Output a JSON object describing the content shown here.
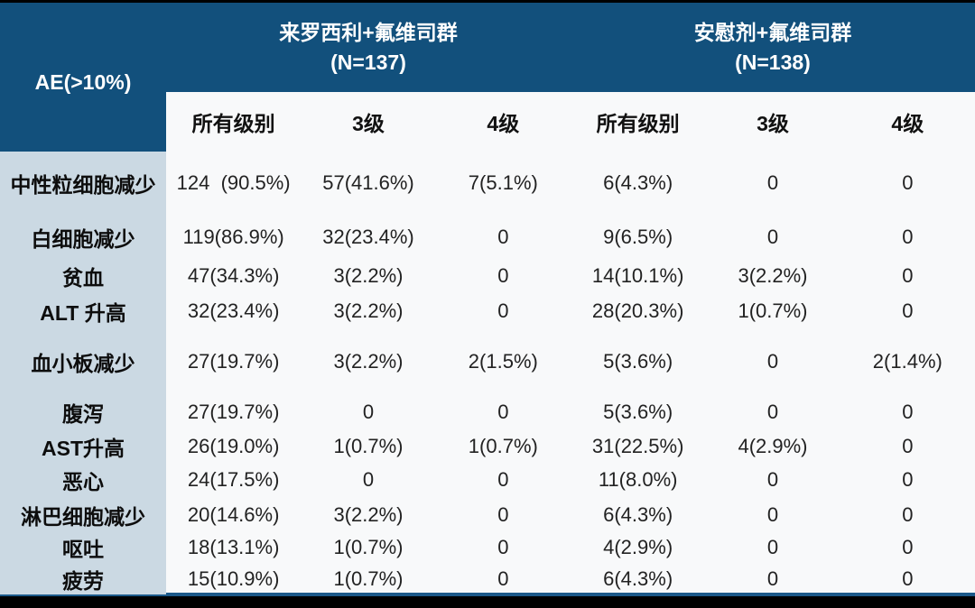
{
  "colors": {
    "header_navy": "#12507C",
    "label_column_bg": "#CBD9E3",
    "table_bg": "#F8F9FA",
    "frame_black": "#000000",
    "bottom_rule_navy": "#1B5989",
    "header_text": "#FFFFFF",
    "body_text": "#1C1C1C"
  },
  "chart_data": {
    "type": "table",
    "corner_header": "AE(>10%)",
    "column_groups": [
      {
        "label": "来罗西利+氟维司群",
        "n": "(N=137)",
        "columns": [
          "所有级别",
          "3级",
          "4级"
        ]
      },
      {
        "label": "安慰剂+氟维司群",
        "n": "(N=138)",
        "columns": [
          "所有级别",
          "3级",
          "4级"
        ]
      }
    ],
    "rows": [
      {
        "label": "中性粒细胞减少",
        "values": [
          "124  (90.5%)",
          "57(41.6%)",
          "7(5.1%)",
          "6(4.3%)",
          "0",
          "0"
        ]
      },
      {
        "label": "白细胞减少",
        "values": [
          "119(86.9%)",
          "32(23.4%)",
          "0",
          "9(6.5%)",
          "0",
          "0"
        ]
      },
      {
        "label": "贫血",
        "values": [
          "47(34.3%)",
          "3(2.2%)",
          "0",
          "14(10.1%)",
          "3(2.2%)",
          "0"
        ]
      },
      {
        "label": "ALT 升高",
        "values": [
          "32(23.4%)",
          "3(2.2%)",
          "0",
          "28(20.3%)",
          "1(0.7%)",
          "0"
        ]
      },
      {
        "label": "血小板减少",
        "values": [
          "27(19.7%)",
          "3(2.2%)",
          "2(1.5%)",
          "5(3.6%)",
          "0",
          "2(1.4%)"
        ]
      },
      {
        "label": "腹泻",
        "values": [
          "27(19.7%)",
          "0",
          "0",
          "5(3.6%)",
          "0",
          "0"
        ]
      },
      {
        "label": "AST升高",
        "values": [
          "26(19.0%)",
          "1(0.7%)",
          "1(0.7%)",
          "31(22.5%)",
          "4(2.9%)",
          "0"
        ]
      },
      {
        "label": "恶心",
        "values": [
          "24(17.5%)",
          "0",
          "0",
          "11(8.0%)",
          "0",
          "0"
        ]
      },
      {
        "label": "淋巴细胞减少",
        "values": [
          "20(14.6%)",
          "3(2.2%)",
          "0",
          "6(4.3%)",
          "0",
          "0"
        ]
      },
      {
        "label": "呕吐",
        "values": [
          "18(13.1%)",
          "1(0.7%)",
          "0",
          "4(2.9%)",
          "0",
          "0"
        ]
      },
      {
        "label": "疲劳",
        "values": [
          "15(10.9%)",
          "1(0.7%)",
          "0",
          "6(4.3%)",
          "0",
          "0"
        ]
      }
    ]
  }
}
